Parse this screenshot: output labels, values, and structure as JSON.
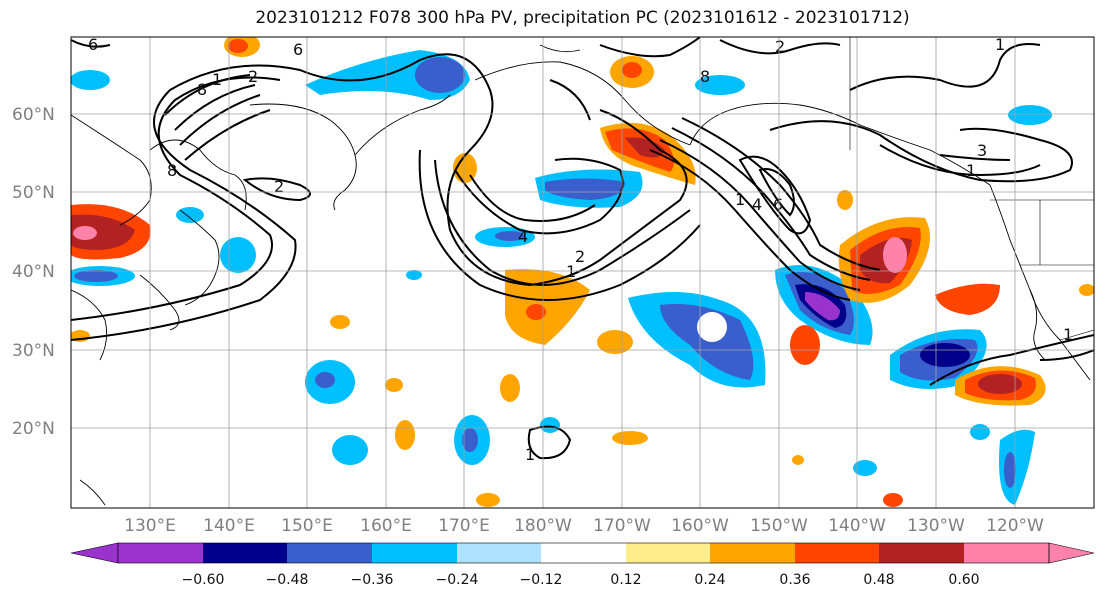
{
  "title": "2023101212 F078 300 hPa PV, precipitation PC (2023101612 - 2023101712)",
  "map": {
    "lat_labels": [
      "60°N",
      "50°N",
      "40°N",
      "30°N",
      "20°N"
    ],
    "lon_labels": [
      "130°E",
      "140°E",
      "150°E",
      "160°E",
      "170°E",
      "180°W",
      "170°W",
      "160°W",
      "150°W",
      "140°W",
      "130°W",
      "120°W"
    ],
    "contour_labels": [
      "6",
      "6",
      "8",
      "1",
      "2",
      "8",
      "2",
      "4",
      "1",
      "2",
      "8",
      "6",
      "4",
      "1",
      "3",
      "1",
      "2",
      "1",
      "1",
      "1"
    ],
    "ocean_color": "#ffffff",
    "grid_color": "#a0a0a0"
  },
  "colorbar": {
    "ticks": [
      "−0.60",
      "−0.48",
      "−0.36",
      "−0.24",
      "−0.12",
      "0.12",
      "0.24",
      "0.36",
      "0.48",
      "0.60"
    ],
    "colors": [
      "#9a32cd",
      "#00008b",
      "#3a5fcd",
      "#00bfff",
      "#b0e2ff",
      "#ffffff",
      "#ffec8b",
      "#ffa500",
      "#ff4500",
      "#b22222",
      "#ff82ab"
    ]
  }
}
